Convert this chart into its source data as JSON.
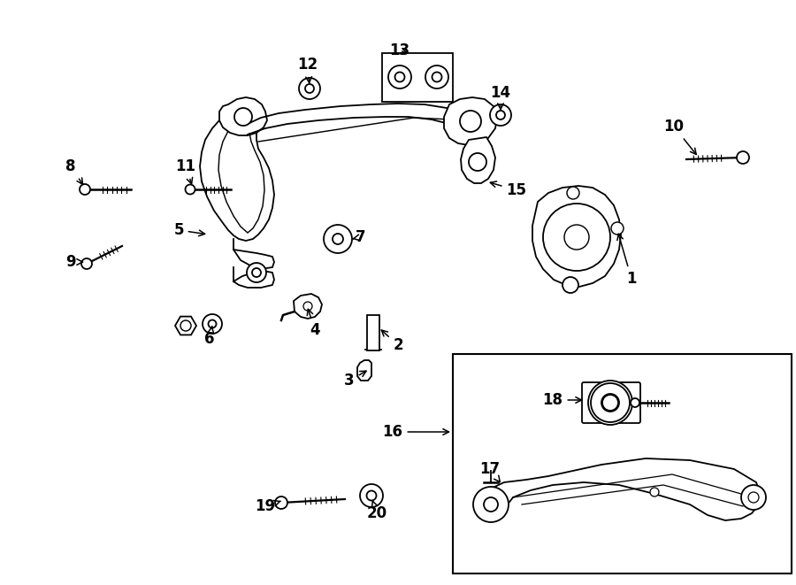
{
  "bg_color": "#ffffff",
  "line_color": "#000000",
  "lw": 1.3,
  "label_fontsize": 12,
  "labels": [
    [
      "1",
      714,
      315,
      686,
      310,
      "←"
    ],
    [
      "2",
      450,
      393,
      426,
      380,
      "←"
    ],
    [
      "3",
      398,
      428,
      418,
      418,
      "→"
    ],
    [
      "4",
      356,
      370,
      356,
      353,
      "↑"
    ],
    [
      "5",
      202,
      258,
      232,
      264,
      "→"
    ],
    [
      "6",
      237,
      382,
      237,
      358,
      "↑"
    ],
    [
      "7",
      407,
      270,
      385,
      270,
      "←"
    ],
    [
      "8",
      80,
      185,
      98,
      210,
      "↓"
    ],
    [
      "9",
      80,
      295,
      98,
      283,
      "↑"
    ],
    [
      "10",
      762,
      143,
      762,
      168,
      "↓"
    ],
    [
      "11",
      210,
      185,
      228,
      210,
      "↓"
    ],
    [
      "12",
      348,
      73,
      348,
      98,
      "↓"
    ],
    [
      "13",
      452,
      60,
      464,
      68,
      "↓"
    ],
    [
      "14",
      566,
      107,
      566,
      128,
      "↓"
    ],
    [
      "15",
      584,
      215,
      557,
      207,
      "←"
    ],
    [
      "16",
      444,
      488,
      462,
      488,
      "—"
    ],
    [
      "17",
      554,
      533,
      572,
      548,
      "↓"
    ],
    [
      "18",
      625,
      455,
      648,
      462,
      "→"
    ],
    [
      "19",
      300,
      573,
      318,
      566,
      "→"
    ],
    [
      "20",
      426,
      580,
      416,
      562,
      "↑"
    ]
  ]
}
